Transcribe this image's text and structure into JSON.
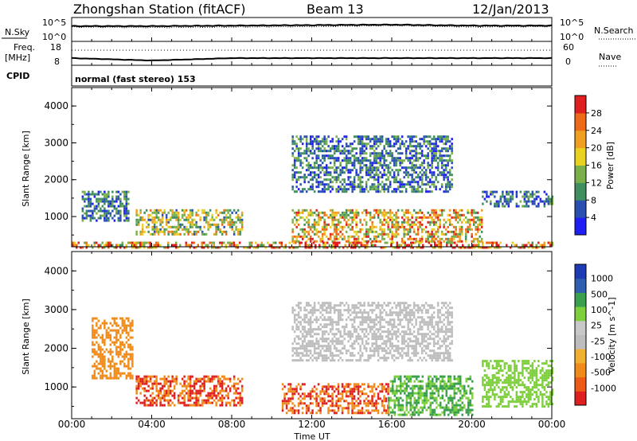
{
  "header": {
    "station": "Zhongshan Station (fitACF)",
    "beam": "Beam 13",
    "date": "12/Jan/2013"
  },
  "noise_panel": {
    "left_label": "N.Sky",
    "right_label": "N.Search",
    "left_ticks": [
      "10^5",
      "10^0"
    ],
    "right_ticks": [
      "10^5",
      "10^0"
    ]
  },
  "freq_panel": {
    "left_label_top": "Freq.",
    "left_label_bottom": "[MHz]",
    "left_ticks": [
      "18",
      "8"
    ],
    "right_label": "Nave",
    "right_ticks": [
      "60",
      "0"
    ]
  },
  "cpid": {
    "label": "CPID",
    "value": "normal (fast stereo) 153"
  },
  "colors": {
    "power_scale": [
      "#1f1ff5",
      "#2a4fb3",
      "#3f8f5f",
      "#79b04a",
      "#e8d21f",
      "#f0a020",
      "#ee6a18",
      "#e02020"
    ],
    "velocity_scale": [
      "#e02020",
      "#ee5a18",
      "#f08a18",
      "#f2b030",
      "#bdbdbd",
      "#c8c8c8",
      "#7dcf3c",
      "#3aa050",
      "#2e5fb0",
      "#1f3ab5"
    ]
  },
  "chart_data": [
    {
      "type": "line",
      "title": "",
      "xlabel": "",
      "ylabel": "N.Sky",
      "x": [
        "00:00",
        "04:00",
        "08:00",
        "12:00",
        "16:00",
        "20:00",
        "00:00"
      ],
      "series": [
        {
          "name": "N.Sky",
          "values": [
            3.2,
            3.2,
            3.3,
            3.4,
            3.5,
            3.3,
            3.3
          ]
        },
        {
          "name": "N.Search",
          "values": [
            3.0,
            2.9,
            3.0,
            3.1,
            3.3,
            3.0,
            3.1
          ]
        }
      ],
      "ylim": [
        0,
        5
      ]
    },
    {
      "type": "scatter",
      "title": "",
      "ylabel": "Freq. [MHz]",
      "x": [
        "00:00",
        "04:00",
        "08:00",
        "12:00",
        "16:00",
        "20:00",
        "00:00"
      ],
      "series": [
        {
          "name": "Freq.",
          "values": [
            11,
            10,
            11,
            11,
            11,
            11,
            11
          ]
        },
        {
          "name": "Nave",
          "values": [
            38,
            38,
            38,
            38,
            38,
            38,
            38
          ]
        }
      ],
      "ylim": [
        8,
        18
      ]
    },
    {
      "type": "heatmap",
      "title": "",
      "xlabel": "",
      "ylabel": "Slant Range [km]",
      "x_ticks": [
        "00:00",
        "04:00",
        "08:00",
        "12:00",
        "16:00",
        "20:00",
        "00:00"
      ],
      "y_ticks": [
        "1000",
        "2000",
        "3000",
        "4000"
      ],
      "ylim": [
        180,
        4500
      ],
      "colorbar": {
        "label": "Power [dB]",
        "ticks": [
          "4",
          "8",
          "12",
          "16",
          "20",
          "24",
          "28"
        ],
        "range": [
          0,
          30
        ]
      },
      "regions": [
        {
          "t_start": 0.5,
          "t_end": 2.8,
          "r_min": 900,
          "r_max": 1700,
          "value": 8
        },
        {
          "t_start": 3.2,
          "t_end": 8.5,
          "r_min": 500,
          "r_max": 1200,
          "value": 16
        },
        {
          "t_start": 11.0,
          "t_end": 20.5,
          "r_min": 300,
          "r_max": 1200,
          "value": 20
        },
        {
          "t_start": 11.0,
          "t_end": 19.0,
          "r_min": 1700,
          "r_max": 3200,
          "value": 8
        },
        {
          "t_start": 20.5,
          "t_end": 24.0,
          "r_min": 1300,
          "r_max": 1700,
          "value": 8
        },
        {
          "t_start": 0.0,
          "t_end": 24.0,
          "r_min": 180,
          "r_max": 320,
          "value": 24
        }
      ]
    },
    {
      "type": "heatmap",
      "title": "",
      "xlabel": "Time UT",
      "ylabel": "Slant Range [km]",
      "x_ticks": [
        "00:00",
        "04:00",
        "08:00",
        "12:00",
        "16:00",
        "20:00",
        "00:00"
      ],
      "y_ticks": [
        "1000",
        "2000",
        "3000",
        "4000"
      ],
      "ylim": [
        180,
        4500
      ],
      "colorbar": {
        "label": "Velocity [m s^-1]",
        "ticks": [
          "1000",
          "500",
          "100",
          "25",
          "-25",
          "-100",
          "-500",
          "-1000"
        ],
        "range": [
          -1000,
          1000
        ]
      },
      "regions": [
        {
          "t_start": 1.0,
          "t_end": 3.0,
          "r_min": 1200,
          "r_max": 2800,
          "value": -300
        },
        {
          "t_start": 3.2,
          "t_end": 8.5,
          "r_min": 500,
          "r_max": 1300,
          "value": -500
        },
        {
          "t_start": 10.5,
          "t_end": 15.8,
          "r_min": 300,
          "r_max": 1100,
          "value": -500
        },
        {
          "t_start": 15.8,
          "t_end": 20.0,
          "r_min": 300,
          "r_max": 1300,
          "value": 100
        },
        {
          "t_start": 11.0,
          "t_end": 19.0,
          "r_min": 1700,
          "r_max": 3200,
          "value": 0
        },
        {
          "t_start": 20.5,
          "t_end": 24.0,
          "r_min": 500,
          "r_max": 1700,
          "value": 50
        }
      ]
    }
  ]
}
